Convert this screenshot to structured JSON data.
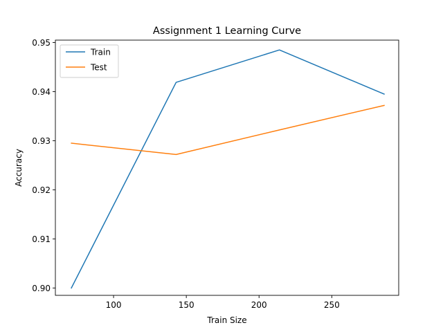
{
  "chart_data": {
    "type": "line",
    "title": "Assignment 1 Learning Curve",
    "xlabel": "Train Size",
    "ylabel": "Accuracy",
    "xlim": [
      60,
      296
    ],
    "ylim": [
      0.8985,
      0.9505
    ],
    "xticks": [
      100,
      150,
      200,
      250
    ],
    "xtick_labels": [
      "100",
      "150",
      "200",
      "250"
    ],
    "yticks": [
      0.9,
      0.91,
      0.92,
      0.93,
      0.94,
      0.95
    ],
    "ytick_labels": [
      "0.90",
      "0.91",
      "0.92",
      "0.93",
      "0.94",
      "0.95"
    ],
    "x": [
      71,
      143,
      214,
      286
    ],
    "series": [
      {
        "name": "Train",
        "color": "#1f77b4",
        "values": [
          0.9,
          0.9419,
          0.9485,
          0.9395
        ]
      },
      {
        "name": "Test",
        "color": "#ff7f0e",
        "values": [
          0.9295,
          0.9272,
          0.9322,
          0.9372
        ]
      }
    ],
    "grid": false,
    "legend_position": "upper-left"
  }
}
